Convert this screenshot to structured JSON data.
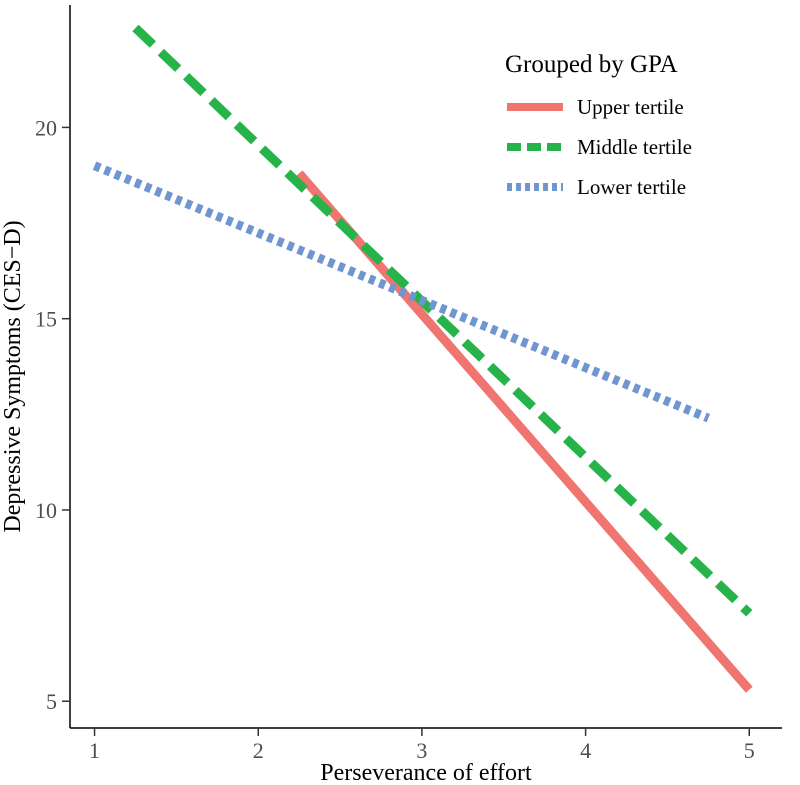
{
  "chart_data": {
    "type": "line",
    "xlabel": "Perseverance of effort",
    "ylabel": "Depressive Symptoms (CES−D)",
    "xlim": [
      0.85,
      5.2
    ],
    "ylim": [
      4.3,
      23.2
    ],
    "x_ticks": [
      1,
      2,
      3,
      4,
      5
    ],
    "x_tick_labels": [
      "1",
      "2",
      "3",
      "4",
      "5"
    ],
    "y_ticks": [
      5,
      10,
      15,
      20
    ],
    "y_tick_labels": [
      "5",
      "10",
      "15",
      "20"
    ],
    "grid": false,
    "legend": {
      "title": "Grouped by GPA",
      "placement": "top-right"
    },
    "series": [
      {
        "name": "Upper tertile",
        "color": "#f07470",
        "line_style": "solid",
        "x": [
          2.25,
          5.0
        ],
        "y": [
          18.8,
          5.3
        ]
      },
      {
        "name": "Middle tertile",
        "color": "#26b34a",
        "line_style": "dashed",
        "x": [
          1.25,
          5.0
        ],
        "y": [
          22.6,
          7.3
        ]
      },
      {
        "name": "Lower tertile",
        "color": "#6f96cf",
        "line_style": "dotted",
        "x": [
          1.0,
          4.75
        ],
        "y": [
          19.0,
          12.4
        ]
      }
    ]
  }
}
